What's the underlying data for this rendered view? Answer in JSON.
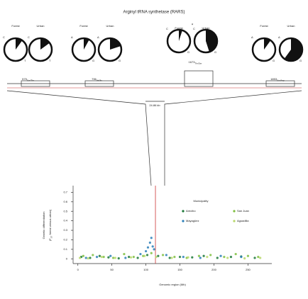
{
  "chart_data": {
    "type": "scatter",
    "title": "Arginyl tRNA synthetase (RARS)",
    "xlabel": "Genomic region (Mb)",
    "ylabel": "Genetic differentiation",
    "ylabel2": {
      "prefix": "(F",
      "sub": "ST",
      "suffix": " forest versus urban)"
    },
    "legend_title": "Municipality",
    "xlim": [
      -7,
      285
    ],
    "ylim": [
      -0.05,
      0.77
    ],
    "xticks": [
      0,
      50,
      100,
      150,
      200,
      250
    ],
    "yticks": [
      0,
      0.1,
      0.2,
      0.3,
      0.4,
      0.5,
      0.6,
      0.7
    ],
    "gene_position": 114,
    "series": [
      {
        "name": "Arecibo",
        "color": "#1b7837",
        "x": [
          5,
          18,
          32,
          45,
          60,
          75,
          88,
          102,
          118,
          135,
          150,
          168,
          185,
          205,
          225,
          240,
          260
        ],
        "values": [
          0.02,
          0.01,
          0.03,
          0.015,
          0.005,
          0.02,
          0.01,
          0.04,
          0.03,
          0.01,
          0.02,
          0.015,
          0.03,
          0.01,
          0.02,
          0.025,
          0.01
        ]
      },
      {
        "name": "San Juan",
        "color": "#7fbf3f",
        "x": [
          8,
          22,
          38,
          52,
          68,
          82,
          96,
          108,
          125,
          142,
          160,
          178,
          195,
          215,
          232,
          250,
          265
        ],
        "values": [
          0.03,
          0.04,
          0.02,
          0.01,
          0.05,
          0.02,
          0.03,
          0.06,
          0.04,
          0.02,
          0.01,
          0.03,
          0.04,
          0.02,
          0.05,
          0.03,
          0.02
        ]
      },
      {
        "name": "Mayagüez",
        "color": "#2c7fb8",
        "x": [
          12,
          28,
          48,
          70,
          92,
          100,
          103,
          106,
          108,
          110,
          112,
          130,
          155,
          180,
          210,
          240
        ],
        "values": [
          0.01,
          0.02,
          0.03,
          0.01,
          0.05,
          0.08,
          0.12,
          0.17,
          0.22,
          0.13,
          0.1,
          0.04,
          0.02,
          0.01,
          0.03,
          0.02
        ]
      },
      {
        "name": "Aguadilla",
        "color": "#b8d86b",
        "x": [
          3,
          15,
          35,
          55,
          78,
          98,
          115,
          138,
          162,
          190,
          220,
          245,
          268
        ],
        "values": [
          0.01,
          0.005,
          0.02,
          0.01,
          0.015,
          0.03,
          0.02,
          0.01,
          0.015,
          0.02,
          0.01,
          0.005,
          0.01
        ]
      }
    ]
  },
  "gene_panel": {
    "population_labels": [
      "Forest",
      "Urban"
    ],
    "scale_label": "24.86 kb",
    "snps": [
      {
        "position": "575",
        "change": "Ser/Thr",
        "alleles": [
          "C",
          "T"
        ],
        "forest": 10,
        "urban": 15
      },
      {
        "position": "796",
        "change": "Val/Ile",
        "alleles": [
          "A",
          "G"
        ],
        "forest": 8,
        "urban": 20
      },
      {
        "position": "1673",
        "change": "Thr/Ser",
        "alleles": [
          "C",
          "G"
        ],
        "forest": 5,
        "urban": 45,
        "significance": "*"
      },
      {
        "position": "1853",
        "change": "Ser/Asp",
        "alleles": [
          "A",
          "G"
        ],
        "forest": 10,
        "urban": 60
      }
    ]
  }
}
